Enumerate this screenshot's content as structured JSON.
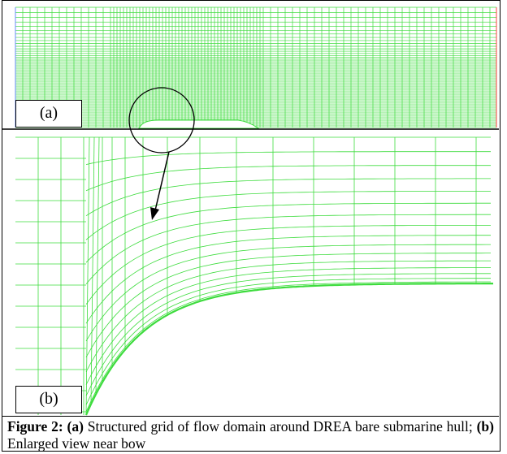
{
  "panels": [
    {
      "label": "(a)"
    },
    {
      "label": "(b)"
    }
  ],
  "caption": {
    "figure": "Figure 2:",
    "parts": [
      {
        "label": "(a)",
        "text": "Structured grid of flow domain around DREA bare submarine hull;"
      },
      {
        "label": "(b)",
        "text": "Enlarged view near bow"
      }
    ]
  }
}
